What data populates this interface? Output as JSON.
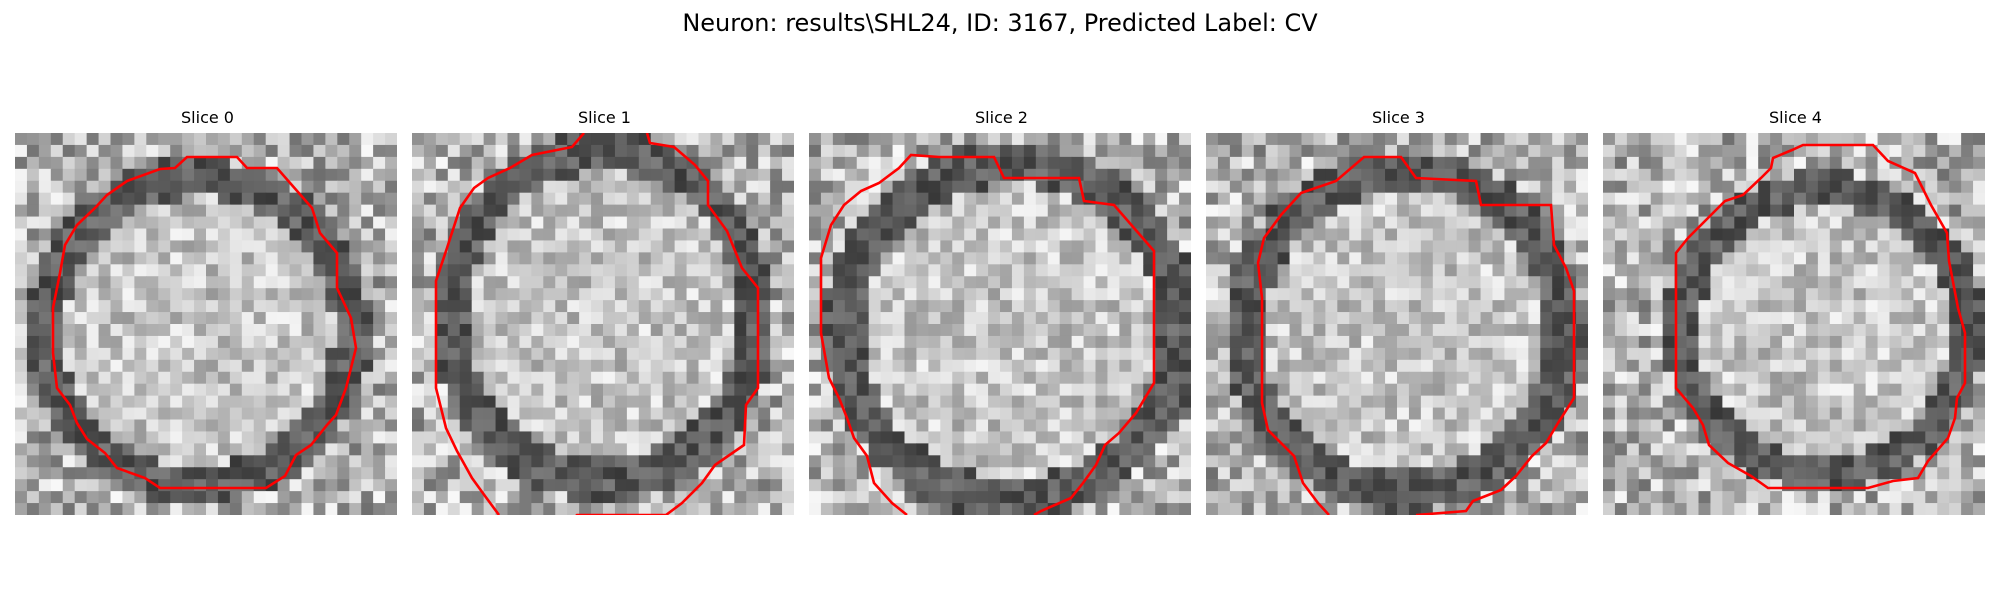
{
  "figure": {
    "title": "Neuron: results\\SHL24, ID: 3167, Predicted Label: CV"
  },
  "panels": [
    {
      "title": "Slice 0"
    },
    {
      "title": "Slice 1"
    },
    {
      "title": "Slice 2"
    },
    {
      "title": "Slice 3"
    },
    {
      "title": "Slice 4"
    }
  ],
  "style": {
    "contour_color": "#ff0000",
    "colormap": "grayscale"
  }
}
